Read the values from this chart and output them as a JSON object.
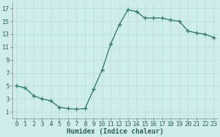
{
  "x": [
    0,
    1,
    2,
    3,
    4,
    5,
    6,
    7,
    8,
    9,
    10,
    11,
    12,
    13,
    14,
    15,
    16,
    17,
    18,
    19,
    20,
    21,
    22,
    23
  ],
  "y": [
    5,
    4.7,
    3.5,
    3.0,
    2.7,
    1.7,
    1.5,
    1.4,
    1.5,
    4.5,
    7.5,
    11.5,
    14.5,
    16.8,
    16.5,
    15.5,
    15.5,
    15.5,
    15.2,
    15.0,
    13.5,
    13.2,
    13.0,
    12.5
  ],
  "line_color": "#2e7d6e",
  "marker": "+",
  "markersize": 4,
  "linewidth": 1.0,
  "bg_color": "#cdecea",
  "grid_color": "#b8ddd9",
  "xlabel": "Humidex (Indice chaleur)",
  "xlabel_fontsize": 7,
  "tick_fontsize": 6.5,
  "xlim": [
    -0.5,
    23.5
  ],
  "ylim": [
    0,
    18
  ],
  "yticks": [
    1,
    3,
    5,
    7,
    9,
    11,
    13,
    15,
    17
  ],
  "xticks": [
    0,
    1,
    2,
    3,
    4,
    5,
    6,
    7,
    8,
    9,
    10,
    11,
    12,
    13,
    14,
    15,
    16,
    17,
    18,
    19,
    20,
    21,
    22,
    23
  ]
}
